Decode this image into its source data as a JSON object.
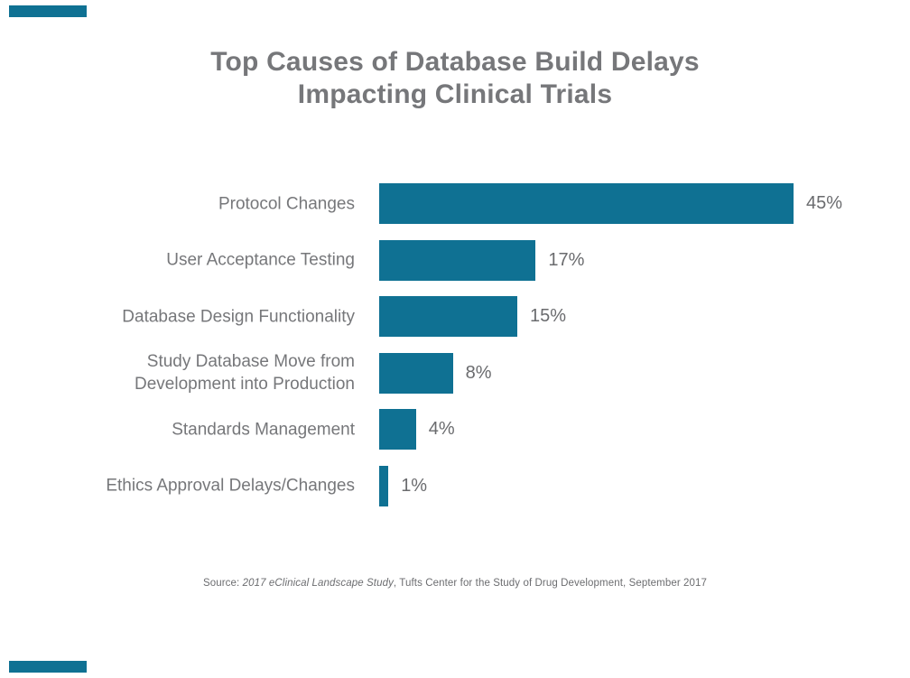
{
  "page": {
    "background_color": "#ffffff",
    "accent_color": "#0f7193",
    "text_gray": "#76777a",
    "value_gray": "#6a6b6e",
    "source_gray": "#6c6d70"
  },
  "title": {
    "line1": "Top Causes of Database Build Delays",
    "line2": "Impacting Clinical Trials"
  },
  "chart_data": {
    "type": "bar",
    "orientation": "horizontal",
    "title": "Top Causes of Database Build Delays Impacting Clinical Trials",
    "xlabel": "",
    "ylabel": "",
    "xlim": [
      0,
      45
    ],
    "grid": false,
    "legend": "none",
    "axes_shown": false,
    "bar_color": "#0f7193",
    "categories": [
      "Protocol Changes",
      "User Acceptance Testing",
      "Database Design Functionality",
      "Study Database Move from Development into Production",
      "Standards Management",
      "Ethics Approval Delays/Changes"
    ],
    "values": [
      45,
      17,
      15,
      8,
      4,
      1
    ],
    "rows": [
      {
        "label_lines": [
          "Protocol Changes"
        ],
        "value": 45,
        "value_label": "45%"
      },
      {
        "label_lines": [
          "User Acceptance Testing"
        ],
        "value": 17,
        "value_label": "17%"
      },
      {
        "label_lines": [
          "Database Design Functionality"
        ],
        "value": 15,
        "value_label": "15%"
      },
      {
        "label_lines": [
          "Study Database Move from",
          "Development into Production"
        ],
        "value": 8,
        "value_label": "8%"
      },
      {
        "label_lines": [
          "Standards Management"
        ],
        "value": 4,
        "value_label": "4%"
      },
      {
        "label_lines": [
          "Ethics Approval Delays/Changes"
        ],
        "value": 1,
        "value_label": "1%"
      }
    ]
  },
  "source": {
    "prefix": "Source: ",
    "study_italic": "2017 eClinical Landscape Study",
    "suffix": ", Tufts Center for the Study of Drug Development, September 2017"
  }
}
